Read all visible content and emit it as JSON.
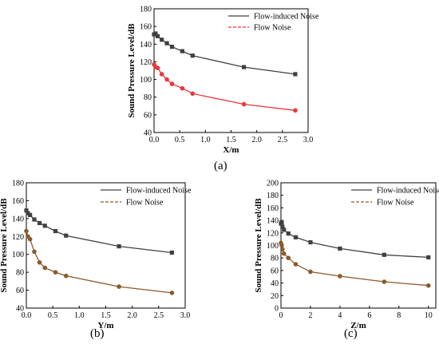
{
  "chart_data": [
    {
      "type": "line",
      "caption": "(a)",
      "xlabel": "X/m",
      "ylabel": "Sound Pressure Level/dB",
      "xlim": [
        0,
        3.0
      ],
      "ylim": [
        40,
        180
      ],
      "xticks": [
        "0.0",
        "0.5",
        "1.0",
        "1.5",
        "2.0",
        "2.5",
        "3.0"
      ],
      "yticks": [
        "40",
        "60",
        "80",
        "100",
        "120",
        "140",
        "160",
        "180"
      ],
      "legend_position": "top-right",
      "series": [
        {
          "name": "Flow-induced Noise",
          "color": "#404040",
          "marker": "square",
          "x": [
            0.0,
            0.03,
            0.07,
            0.15,
            0.25,
            0.35,
            0.55,
            0.75,
            1.75,
            2.75
          ],
          "y": [
            151,
            152,
            149,
            145,
            141,
            137,
            132,
            127,
            114,
            106
          ]
        },
        {
          "name": "Flow Noise",
          "color": "#e8383d",
          "marker": "circle",
          "x": [
            0.0,
            0.03,
            0.07,
            0.15,
            0.25,
            0.35,
            0.55,
            0.75,
            1.75,
            2.75
          ],
          "y": [
            117,
            114,
            113,
            106,
            100,
            95,
            90,
            84,
            72,
            65
          ]
        }
      ]
    },
    {
      "type": "line",
      "caption": "(b)",
      "xlabel": "Y/m",
      "ylabel": "Sound Pressure Level/dB",
      "xlim": [
        0,
        3.0
      ],
      "ylim": [
        40,
        180
      ],
      "xticks": [
        "0.0",
        "0.5",
        "1.0",
        "1.5",
        "2.0",
        "2.5",
        "3.0"
      ],
      "yticks": [
        "40",
        "60",
        "80",
        "100",
        "120",
        "140",
        "160",
        "180"
      ],
      "legend_position": "top-right",
      "series": [
        {
          "name": "Flow-induced Noise",
          "color": "#404040",
          "marker": "square",
          "x": [
            0.0,
            0.03,
            0.07,
            0.15,
            0.25,
            0.35,
            0.55,
            0.75,
            1.75,
            2.75
          ],
          "y": [
            149,
            146,
            144,
            139,
            135,
            132,
            126,
            121,
            109,
            102
          ]
        },
        {
          "name": "Flow Noise",
          "color": "#8b5a2b",
          "marker": "circle",
          "x": [
            0.0,
            0.03,
            0.07,
            0.15,
            0.25,
            0.35,
            0.55,
            0.75,
            1.75,
            2.75
          ],
          "y": [
            126,
            120,
            117,
            103,
            91,
            85,
            80,
            76,
            64,
            57
          ]
        }
      ]
    },
    {
      "type": "line",
      "caption": "(c)",
      "xlabel": "Z/m",
      "ylabel": "Sound Pressure Level/dB",
      "xlim": [
        0,
        10.5
      ],
      "ylim": [
        0,
        200
      ],
      "xticks": [
        "0",
        "2",
        "4",
        "6",
        "8",
        "10"
      ],
      "yticks": [
        "0",
        "20",
        "40",
        "60",
        "80",
        "100",
        "120",
        "140",
        "160",
        "180",
        "200"
      ],
      "legend_position": "top-right",
      "series": [
        {
          "name": "Flow-induced Noise",
          "color": "#404040",
          "marker": "square",
          "x": [
            0.0,
            0.05,
            0.1,
            0.2,
            0.5,
            1.0,
            2.0,
            4.0,
            7.0,
            10.0
          ],
          "y": [
            135,
            137,
            130,
            125,
            119,
            113,
            105,
            95,
            85,
            81
          ]
        },
        {
          "name": "Flow Noise",
          "color": "#8b5a2b",
          "marker": "circle",
          "x": [
            0.0,
            0.05,
            0.1,
            0.2,
            0.5,
            1.0,
            2.0,
            4.0,
            7.0,
            10.0
          ],
          "y": [
            104,
            100,
            94,
            87,
            80,
            70,
            58,
            51,
            42,
            36
          ]
        }
      ]
    }
  ]
}
